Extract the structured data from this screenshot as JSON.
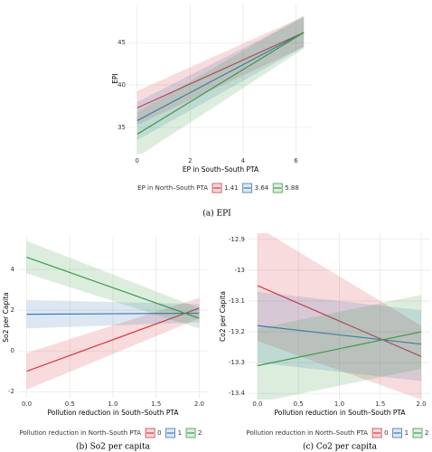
{
  "chart_data": [
    {
      "type": "line",
      "x_label": "EP in South–South PTA",
      "y_label": "EPI",
      "legend_title": "EP in North–South PTA",
      "caption": "(a) EPI",
      "x": [
        0,
        6.3
      ],
      "xlim": [
        -0.3,
        6.6
      ],
      "xticks": [
        0,
        2,
        4,
        6
      ],
      "ylim": [
        31.9,
        49.5
      ],
      "yticks": [
        35,
        40,
        45
      ],
      "grid": true,
      "legend": "bottom",
      "series": [
        {
          "name": "1.41",
          "color": "#d7363e",
          "values": [
            37.3,
            46.2
          ],
          "lower": [
            35.3,
            44.5
          ],
          "upper": [
            39.3,
            48.1
          ]
        },
        {
          "name": "3.64",
          "color": "#3b78b5",
          "values": [
            35.8,
            46.2
          ],
          "lower": [
            33.5,
            44.5
          ],
          "upper": [
            38.0,
            48.0
          ]
        },
        {
          "name": "5.88",
          "color": "#3c9a48",
          "values": [
            34.2,
            46.2
          ],
          "lower": [
            31.5,
            44.3
          ],
          "upper": [
            36.8,
            48.2
          ]
        }
      ]
    },
    {
      "type": "line",
      "x_label": "Pollution reduction in South–South PTA",
      "y_label": "So2 per Capita",
      "legend_title": "Pollution reduction in North–South PTA",
      "caption": "(b) So2 per capita",
      "x": [
        0,
        2
      ],
      "xlim": [
        -0.1,
        2.1
      ],
      "xticks": [
        {
          "value": 0,
          "label": "0.0"
        },
        {
          "value": 0.5,
          "label": "0.5"
        },
        {
          "value": 1,
          "label": "1.0"
        },
        {
          "value": 1.5,
          "label": "1.5"
        },
        {
          "value": 2,
          "label": "2.0"
        }
      ],
      "ylim": [
        -2.3,
        5.6
      ],
      "yticks": [
        -2,
        0,
        2,
        4
      ],
      "grid": true,
      "legend": "bottom",
      "series": [
        {
          "name": "0",
          "color": "#d7363e",
          "values": [
            -1.0,
            2.1
          ],
          "lower": [
            -1.9,
            1.6
          ],
          "upper": [
            -0.1,
            2.6
          ]
        },
        {
          "name": "1",
          "color": "#3b78b5",
          "values": [
            1.8,
            1.85
          ],
          "lower": [
            1.1,
            1.4
          ],
          "upper": [
            2.5,
            2.3
          ]
        },
        {
          "name": "2",
          "color": "#3c9a48",
          "values": [
            4.6,
            1.6
          ],
          "lower": [
            3.8,
            1.1
          ],
          "upper": [
            5.4,
            2.1
          ]
        }
      ]
    },
    {
      "type": "line",
      "x_label": "Pollution reduction in South–South PTA",
      "y_label": "Co2 per Capita",
      "legend_title": "Pollution reduction in North–South PTA",
      "caption": "(c) Co2 per capita",
      "x": [
        0,
        2
      ],
      "xlim": [
        -0.11,
        2.11
      ],
      "xticks": [
        {
          "value": 0,
          "label": "0.0"
        },
        {
          "value": 0.5,
          "label": "0.5"
        },
        {
          "value": 1,
          "label": "1.0"
        },
        {
          "value": 1.5,
          "label": "1.5"
        },
        {
          "value": 2,
          "label": "2.0"
        }
      ],
      "ylim": [
        -13.42,
        -12.88
      ],
      "yticks": [
        -13.4,
        -13.3,
        -13.2,
        -13.1,
        -13.0,
        -12.9
      ],
      "grid": true,
      "legend": "bottom",
      "series": [
        {
          "name": "0",
          "color": "#d7363e",
          "values": [
            -13.05,
            -13.28
          ],
          "lower": [
            -13.23,
            -13.42
          ],
          "upper": [
            -12.86,
            -13.18
          ]
        },
        {
          "name": "1",
          "color": "#3b78b5",
          "values": [
            -13.18,
            -13.24
          ],
          "lower": [
            -13.3,
            -13.36
          ],
          "upper": [
            -13.07,
            -13.13
          ]
        },
        {
          "name": "2",
          "color": "#3c9a48",
          "values": [
            -13.31,
            -13.2
          ],
          "lower": [
            -13.43,
            -13.32
          ],
          "upper": [
            -13.19,
            -13.08
          ]
        }
      ]
    }
  ]
}
